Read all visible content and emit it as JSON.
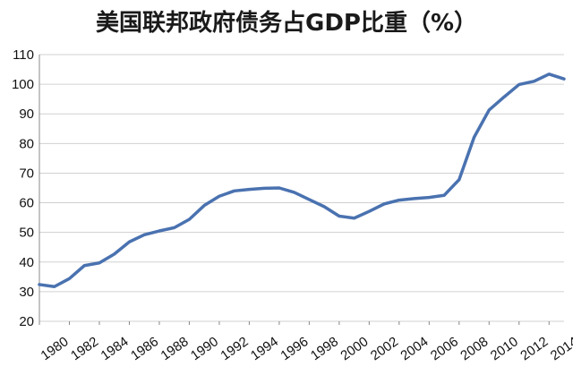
{
  "chart_data": {
    "type": "line",
    "title": "美国联邦政府债务占GDP比重（%）",
    "xlabel": "",
    "ylabel": "",
    "ylim": [
      20,
      110
    ],
    "yticks": [
      20,
      30,
      40,
      50,
      60,
      70,
      80,
      90,
      100,
      110
    ],
    "xlim": [
      1980,
      2015
    ],
    "xtick_labels": [
      "1980",
      "1982",
      "1984",
      "1986",
      "1988",
      "1990",
      "1992",
      "1994",
      "1996",
      "1998",
      "2000",
      "2002",
      "2004",
      "2006",
      "2008",
      "2010",
      "2012",
      "2014"
    ],
    "grid": true,
    "legend": "none",
    "line_color": "#4a72b0",
    "x": [
      1980,
      1981,
      1982,
      1983,
      1984,
      1985,
      1986,
      1987,
      1988,
      1989,
      1990,
      1991,
      1992,
      1993,
      1994,
      1995,
      1996,
      1997,
      1998,
      1999,
      2000,
      2001,
      2002,
      2003,
      2004,
      2005,
      2006,
      2007,
      2008,
      2009,
      2010,
      2011,
      2012,
      2013,
      2014,
      2015
    ],
    "series": [
      {
        "values": [
          32.4,
          31.7,
          34.4,
          38.8,
          39.7,
          42.7,
          46.8,
          49.2,
          50.5,
          51.6,
          54.4,
          59.1,
          62.2,
          64.0,
          64.5,
          64.9,
          65.0,
          63.5,
          61.1,
          58.7,
          55.5,
          54.8,
          57.1,
          59.6,
          60.9,
          61.4,
          61.8,
          62.5,
          67.8,
          82.1,
          91.3,
          95.7,
          99.9,
          101.0,
          103.4,
          101.8
        ]
      }
    ]
  }
}
